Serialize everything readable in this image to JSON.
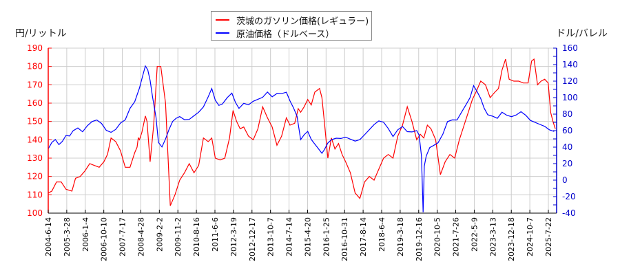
{
  "chart_data": {
    "type": "line",
    "title": "",
    "ylabel_left": "円/リットル",
    "ylabel_right": "ドル/バレル",
    "xlabel": "",
    "ylim_left": [
      100,
      190
    ],
    "ylim_right": [
      -40,
      160
    ],
    "yticks_left": [
      100,
      110,
      120,
      130,
      140,
      150,
      160,
      170,
      180,
      190
    ],
    "yticks_right": [
      -40,
      -20,
      0,
      20,
      40,
      60,
      80,
      100,
      120,
      140,
      160
    ],
    "left_axis_color": "#ff0000",
    "right_axis_color": "#0000cc",
    "grid": true,
    "legend_position": "top-center",
    "x_tick_labels": [
      "2004-6-14",
      "2005-3-28",
      "2006-1-4",
      "2006-10-10",
      "2007-7-17",
      "2008-4-28",
      "2009-2-2",
      "2009-11-2",
      "2010-8-16",
      "2011-6-6",
      "2012-3-19",
      "2012-12-17",
      "2013-10-7",
      "2014-7-14",
      "2015-4-20",
      "2016-1-25",
      "2016-10-31",
      "2017-8-14",
      "2018-6-4",
      "2019-3-18",
      "2019-12-16",
      "2020-10-5",
      "2021-7-26",
      "2022-5-9",
      "2023-3-13",
      "2023-12-18",
      "2024-10-7",
      "2025-7-22"
    ],
    "series": [
      {
        "name": "茨城のガソリン価格(レギュラー)",
        "axis": "left",
        "color": "#ff0000",
        "x_years": [
          2004.45,
          2004.6,
          2004.8,
          2005.0,
          2005.2,
          2005.45,
          2005.6,
          2005.8,
          2006.0,
          2006.2,
          2006.4,
          2006.6,
          2006.8,
          2006.95,
          2007.1,
          2007.3,
          2007.5,
          2007.7,
          2007.9,
          2008.1,
          2008.2,
          2008.25,
          2008.3,
          2008.4,
          2008.55,
          2008.62,
          2008.75,
          2008.9,
          2009.05,
          2009.2,
          2009.4,
          2009.6,
          2009.8,
          2010.0,
          2010.2,
          2010.4,
          2010.6,
          2010.8,
          2011.0,
          2011.2,
          2011.35,
          2011.5,
          2011.7,
          2011.9,
          2012.1,
          2012.25,
          2012.4,
          2012.55,
          2012.7,
          2012.9,
          2013.1,
          2013.3,
          2013.5,
          2013.7,
          2013.9,
          2014.1,
          2014.3,
          2014.5,
          2014.65,
          2014.85,
          2015.0,
          2015.1,
          2015.25,
          2015.4,
          2015.55,
          2015.7,
          2015.9,
          2016.0,
          2016.1,
          2016.25,
          2016.4,
          2016.55,
          2016.7,
          2016.85,
          2017.0,
          2017.2,
          2017.4,
          2017.6,
          2017.8,
          2018.0,
          2018.2,
          2018.4,
          2018.6,
          2018.8,
          2018.9,
          2019.0,
          2019.2,
          2019.4,
          2019.6,
          2019.8,
          2020.0,
          2020.15,
          2020.3,
          2020.45,
          2020.6,
          2020.8,
          2021.0,
          2021.2,
          2021.4,
          2021.6,
          2021.8,
          2022.0,
          2022.2,
          2022.35,
          2022.5,
          2022.7,
          2022.9,
          2023.1,
          2023.3,
          2023.45,
          2023.6,
          2023.75,
          2023.9,
          2024.1,
          2024.3,
          2024.5,
          2024.7,
          2024.85,
          2024.95,
          2025.1,
          2025.25,
          2025.4,
          2025.55,
          2025.65,
          2025.75,
          2025.85
        ],
        "values": [
          111,
          112,
          117,
          117,
          113,
          112,
          119,
          120,
          123,
          127,
          126,
          125,
          128,
          132,
          141,
          139,
          134,
          125,
          125,
          133,
          136,
          141,
          140,
          144,
          153,
          150,
          128,
          148,
          180,
          180,
          160,
          104,
          110,
          118,
          122,
          127,
          122,
          126,
          141,
          139,
          141,
          130,
          129,
          130,
          141,
          156,
          150,
          146,
          147,
          142,
          140,
          146,
          158,
          152,
          147,
          137,
          142,
          152,
          148,
          149,
          157,
          155,
          158,
          162,
          159,
          166,
          168,
          163,
          150,
          130,
          141,
          135,
          138,
          132,
          128,
          122,
          111,
          108,
          117,
          120,
          118,
          124,
          130,
          132,
          131,
          130,
          142,
          148,
          158,
          150,
          140,
          143,
          141,
          148,
          146,
          140,
          121,
          128,
          132,
          130,
          140,
          148,
          156,
          162,
          166,
          172,
          170,
          163,
          166,
          168,
          178,
          184,
          173,
          172,
          172,
          171,
          171,
          183,
          184,
          170,
          172,
          173,
          171,
          155,
          150,
          146
        ],
        "note": "values are approximate, read from the plot"
      },
      {
        "name": "原油価格（ドルベース）",
        "axis": "right",
        "color": "#0000ff",
        "x_years": [
          2004.45,
          2004.6,
          2004.75,
          2004.9,
          2005.05,
          2005.2,
          2005.35,
          2005.5,
          2005.7,
          2005.9,
          2006.1,
          2006.3,
          2006.5,
          2006.7,
          2006.9,
          2007.1,
          2007.3,
          2007.5,
          2007.7,
          2007.9,
          2008.1,
          2008.3,
          2008.45,
          2008.55,
          2008.65,
          2008.75,
          2008.85,
          2009.0,
          2009.1,
          2009.25,
          2009.4,
          2009.55,
          2009.7,
          2009.85,
          2010.0,
          2010.2,
          2010.4,
          2010.6,
          2010.8,
          2011.0,
          2011.2,
          2011.35,
          2011.5,
          2011.65,
          2011.8,
          2012.0,
          2012.2,
          2012.35,
          2012.5,
          2012.7,
          2012.9,
          2013.1,
          2013.3,
          2013.5,
          2013.7,
          2013.9,
          2014.1,
          2014.3,
          2014.5,
          2014.65,
          2014.8,
          2014.95,
          2015.1,
          2015.25,
          2015.4,
          2015.55,
          2015.7,
          2015.85,
          2016.0,
          2016.1,
          2016.25,
          2016.4,
          2016.6,
          2016.8,
          2017.0,
          2017.2,
          2017.4,
          2017.6,
          2017.8,
          2018.0,
          2018.2,
          2018.4,
          2018.6,
          2018.8,
          2019.0,
          2019.2,
          2019.4,
          2019.6,
          2019.8,
          2020.0,
          2020.1,
          2020.2,
          2020.27,
          2020.32,
          2020.4,
          2020.55,
          2020.7,
          2020.9,
          2021.1,
          2021.3,
          2021.5,
          2021.7,
          2021.9,
          2022.1,
          2022.25,
          2022.4,
          2022.55,
          2022.7,
          2022.85,
          2023.0,
          2023.2,
          2023.4,
          2023.6,
          2023.8,
          2024.0,
          2024.2,
          2024.4,
          2024.6,
          2024.8,
          2025.0,
          2025.2,
          2025.4,
          2025.6,
          2025.8
        ],
        "values": [
          38,
          46,
          50,
          44,
          48,
          55,
          54,
          60,
          63,
          58,
          65,
          70,
          72,
          68,
          60,
          58,
          62,
          70,
          74,
          88,
          96,
          112,
          128,
          138,
          133,
          120,
          100,
          75,
          45,
          40,
          50,
          62,
          72,
          76,
          78,
          74,
          74,
          78,
          82,
          88,
          100,
          110,
          96,
          90,
          92,
          100,
          106,
          95,
          88,
          94,
          92,
          96,
          98,
          100,
          106,
          100,
          104,
          104,
          106,
          96,
          88,
          78,
          50,
          56,
          60,
          50,
          44,
          38,
          32,
          36,
          44,
          48,
          50,
          50,
          52,
          50,
          48,
          50,
          56,
          62,
          68,
          72,
          70,
          62,
          52,
          60,
          64,
          58,
          58,
          60,
          55,
          30,
          -38,
          18,
          30,
          40,
          42,
          45,
          55,
          70,
          72,
          72,
          82,
          92,
          100,
          115,
          108,
          100,
          88,
          80,
          78,
          75,
          82,
          78,
          76,
          78,
          82,
          78,
          72,
          70,
          68,
          66,
          62,
          60
        ],
        "note": "values are approximate, read from the plot"
      }
    ]
  },
  "legend": {
    "items": [
      {
        "label": "茨城のガソリン価格(レギュラー)",
        "color": "#ff0000"
      },
      {
        "label": "原油価格（ドルベース）",
        "color": "#0000ff"
      }
    ]
  },
  "axes": {
    "left_title": "円/リットル",
    "right_title": "ドル/バレル"
  }
}
